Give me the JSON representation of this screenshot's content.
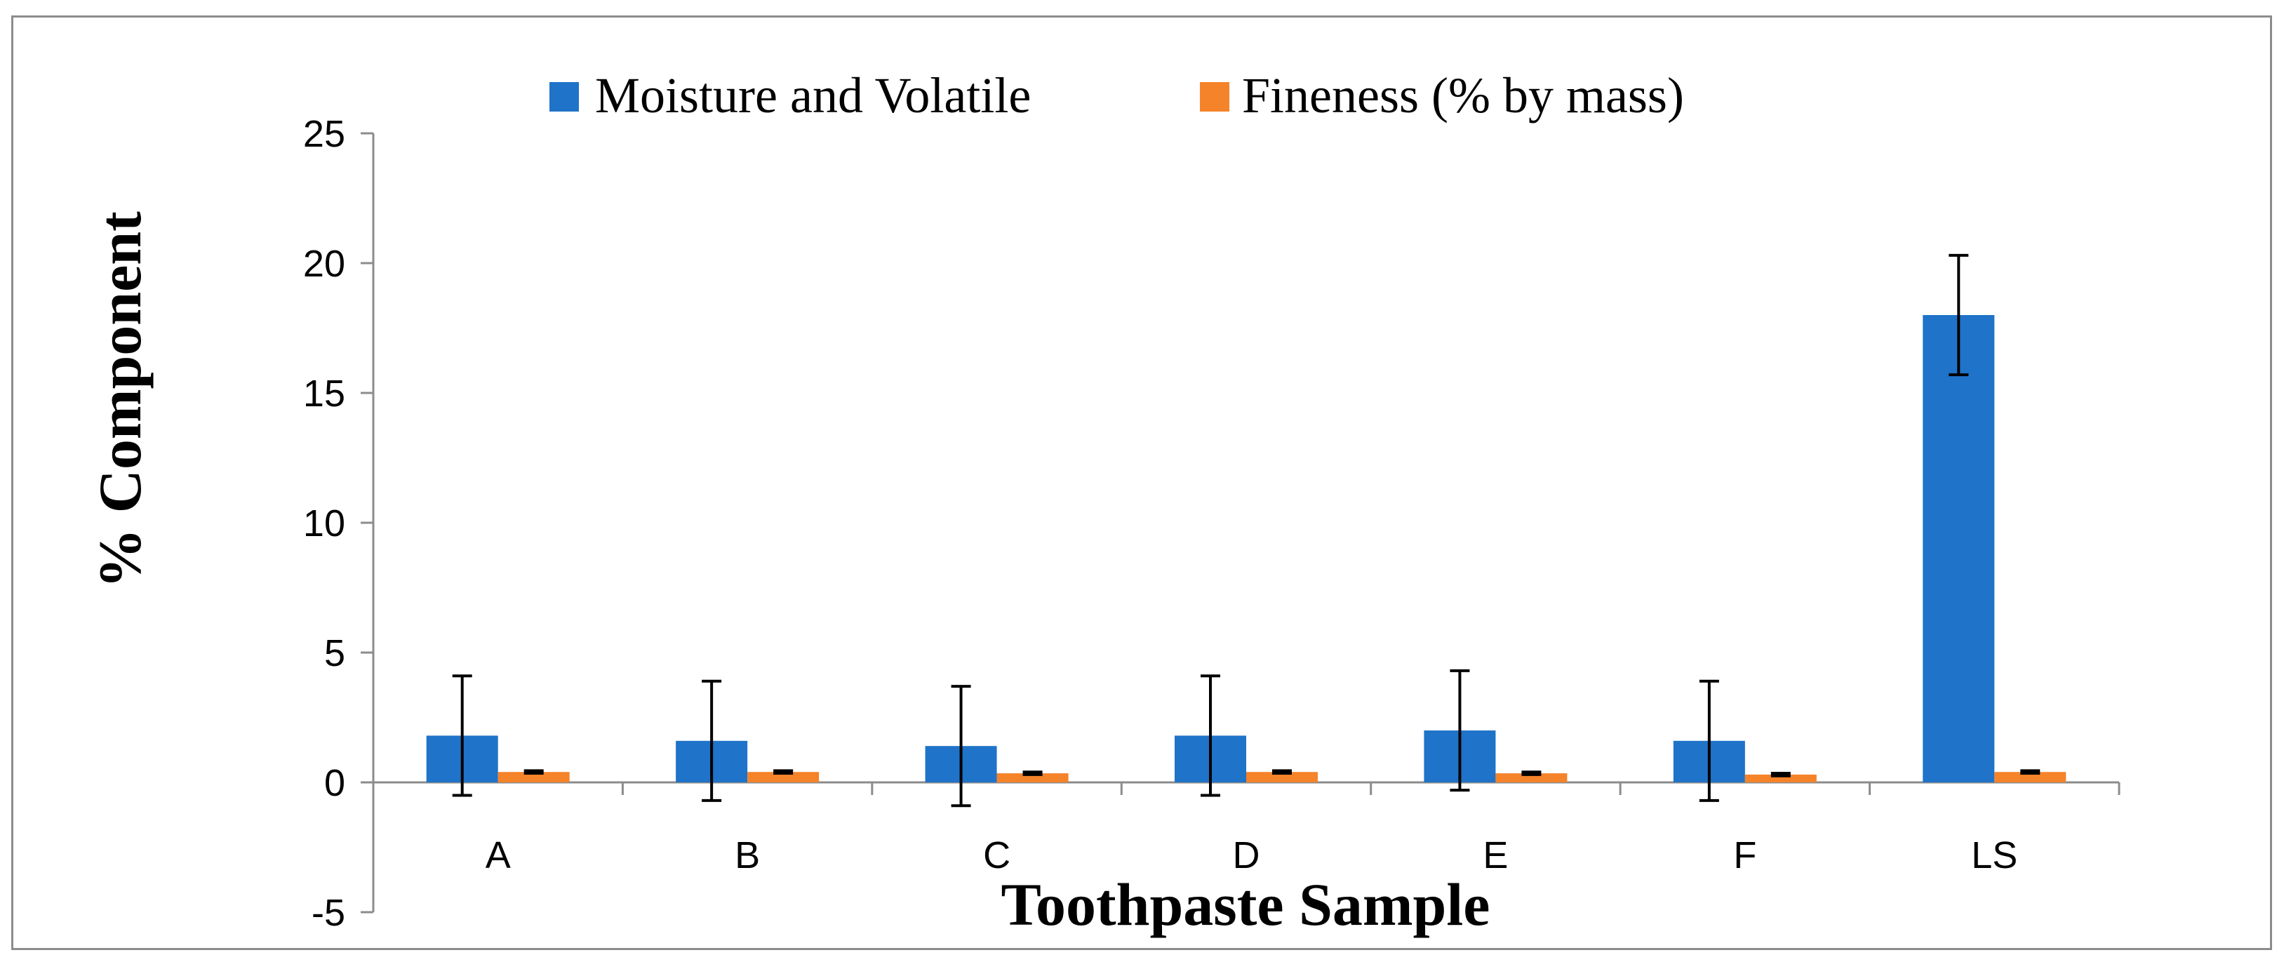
{
  "chart_data": {
    "type": "bar",
    "title": "",
    "xlabel": "Toothpaste Sample",
    "ylabel": "% Component",
    "categories": [
      "A",
      "B",
      "C",
      "D",
      "E",
      "F",
      "LS"
    ],
    "ylim": [
      -5,
      25
    ],
    "yticks": [
      -5,
      0,
      5,
      10,
      15,
      20,
      25
    ],
    "grid": false,
    "legend_position": "top-center",
    "series": [
      {
        "name": "Moisture and Volatile",
        "color": "#1f73c8",
        "values": [
          1.8,
          1.6,
          1.4,
          1.8,
          2.0,
          1.6,
          18.0
        ],
        "errors": [
          2.3,
          2.3,
          2.3,
          2.3,
          2.3,
          2.3,
          2.3
        ]
      },
      {
        "name": "Fineness (% by mass)",
        "color": "#f5832a",
        "values": [
          0.4,
          0.4,
          0.35,
          0.4,
          0.35,
          0.3,
          0.4
        ],
        "errors": [
          0.05,
          0.05,
          0.05,
          0.05,
          0.05,
          0.05,
          0.05
        ]
      }
    ]
  }
}
